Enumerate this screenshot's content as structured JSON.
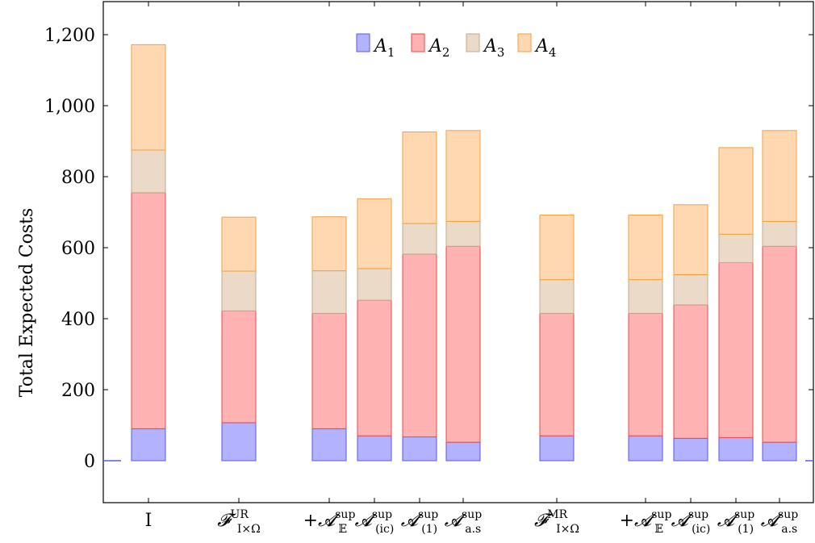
{
  "chart_data": {
    "type": "bar",
    "stacked": true,
    "ylabel": "Total Expected Costs",
    "ylim": [
      -120,
      1290
    ],
    "yticks": [
      0,
      200,
      400,
      600,
      800,
      1000,
      1200
    ],
    "ytick_labels": [
      "0",
      "200",
      "400",
      "600",
      "800",
      "1,000",
      "1,200"
    ],
    "legend_position": "top-center",
    "categories": [
      {
        "main": "I",
        "sub": ""
      },
      {
        "main": "𝓕",
        "sub": "I×Ω",
        "sup": "UR"
      },
      {
        "main": "+𝓐",
        "sub": "𝔼",
        "sup": "sup"
      },
      {
        "main": "𝓐",
        "sub": "(ic)",
        "sup": "sup"
      },
      {
        "main": "𝓐",
        "sub": "(1)",
        "sup": "sup"
      },
      {
        "main": "𝓐",
        "sub": "a.s",
        "sup": "sup"
      },
      {
        "main": "𝓕",
        "sub": "I×Ω",
        "sup": "MR"
      },
      {
        "main": "+𝓐",
        "sub": "𝔼",
        "sup": "sup"
      },
      {
        "main": "𝓐",
        "sub": "(ic)",
        "sup": "sup"
      },
      {
        "main": "𝓐",
        "sub": "(1)",
        "sup": "sup"
      },
      {
        "main": "𝓐",
        "sub": "a.s",
        "sup": "sup"
      }
    ],
    "series": [
      {
        "name": "A",
        "name_sub": "1",
        "fill": "#b2b2ff",
        "stroke": "#5a5ae6",
        "values": [
          90,
          107,
          90,
          70,
          67,
          52,
          70,
          70,
          63,
          65,
          52
        ]
      },
      {
        "name": "A",
        "name_sub": "2",
        "fill": "#ffb2b2",
        "stroke": "#e64a4a",
        "values": [
          665,
          315,
          325,
          382,
          515,
          552,
          345,
          345,
          376,
          493,
          552
        ]
      },
      {
        "name": "A",
        "name_sub": "3",
        "fill": "#ecdac8",
        "stroke": "#c4a88a",
        "values": [
          120,
          112,
          120,
          89,
          86,
          70,
          95,
          95,
          85,
          80,
          70
        ]
      },
      {
        "name": "A",
        "name_sub": "4",
        "fill": "#ffd8b2",
        "stroke": "#f0a040",
        "values": [
          297,
          152,
          152,
          197,
          258,
          256,
          182,
          182,
          197,
          244,
          256
        ]
      }
    ]
  }
}
